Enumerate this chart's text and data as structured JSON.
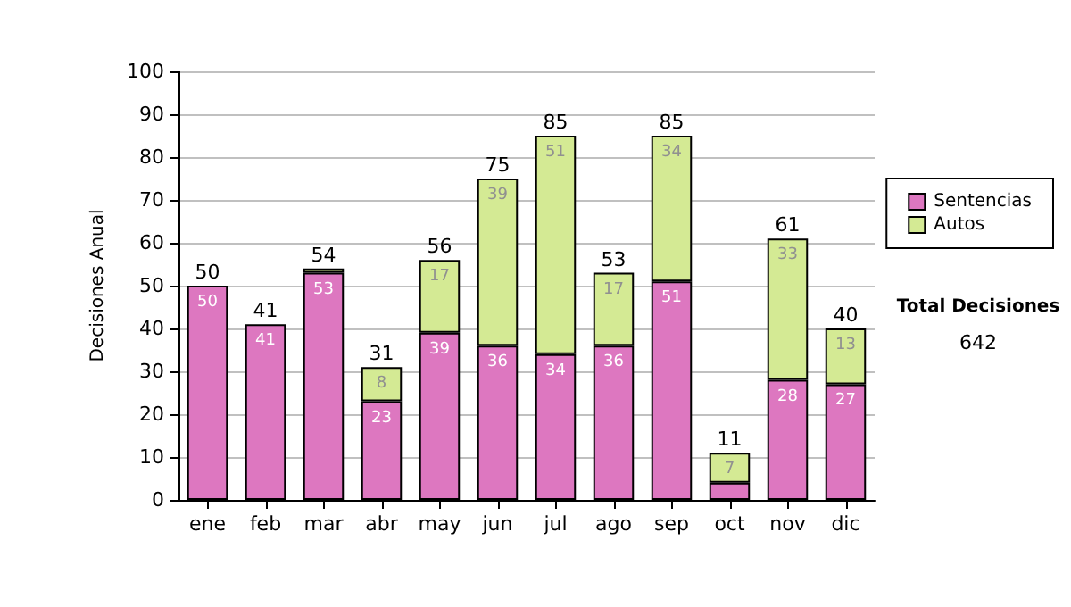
{
  "chart_data": {
    "type": "bar",
    "stacked": true,
    "ylabel": "Decisiones Anual",
    "categories": [
      "ene",
      "feb",
      "mar",
      "abr",
      "may",
      "jun",
      "jul",
      "ago",
      "sep",
      "oct",
      "nov",
      "dic"
    ],
    "series": [
      {
        "name": "Sentencias",
        "color": "#dd77c0",
        "values": [
          50,
          41,
          53,
          23,
          39,
          36,
          34,
          36,
          51,
          4,
          28,
          27
        ],
        "value_labels": [
          "50",
          "41",
          "53",
          "23",
          "39",
          "36",
          "34",
          "36",
          "51",
          null,
          "28",
          "27"
        ]
      },
      {
        "name": "Autos",
        "color": "#d4ea94",
        "values": [
          null,
          null,
          1,
          8,
          17,
          39,
          51,
          17,
          34,
          7,
          33,
          13
        ],
        "value_labels": [
          null,
          null,
          null,
          "8",
          "17",
          "39",
          "51",
          "17",
          "34",
          "7",
          "33",
          "13"
        ]
      }
    ],
    "totals": [
      "50",
      "41",
      "54",
      "31",
      "56",
      "75",
      "85",
      "53",
      "85",
      "11",
      "61",
      "40"
    ],
    "ylim": [
      0,
      100
    ],
    "yticks": [
      0,
      10,
      20,
      30,
      40,
      50,
      60,
      70,
      80,
      90,
      100
    ],
    "grid": "y",
    "legend": "right",
    "annotations": [
      "Total Decisiones",
      "642"
    ]
  }
}
